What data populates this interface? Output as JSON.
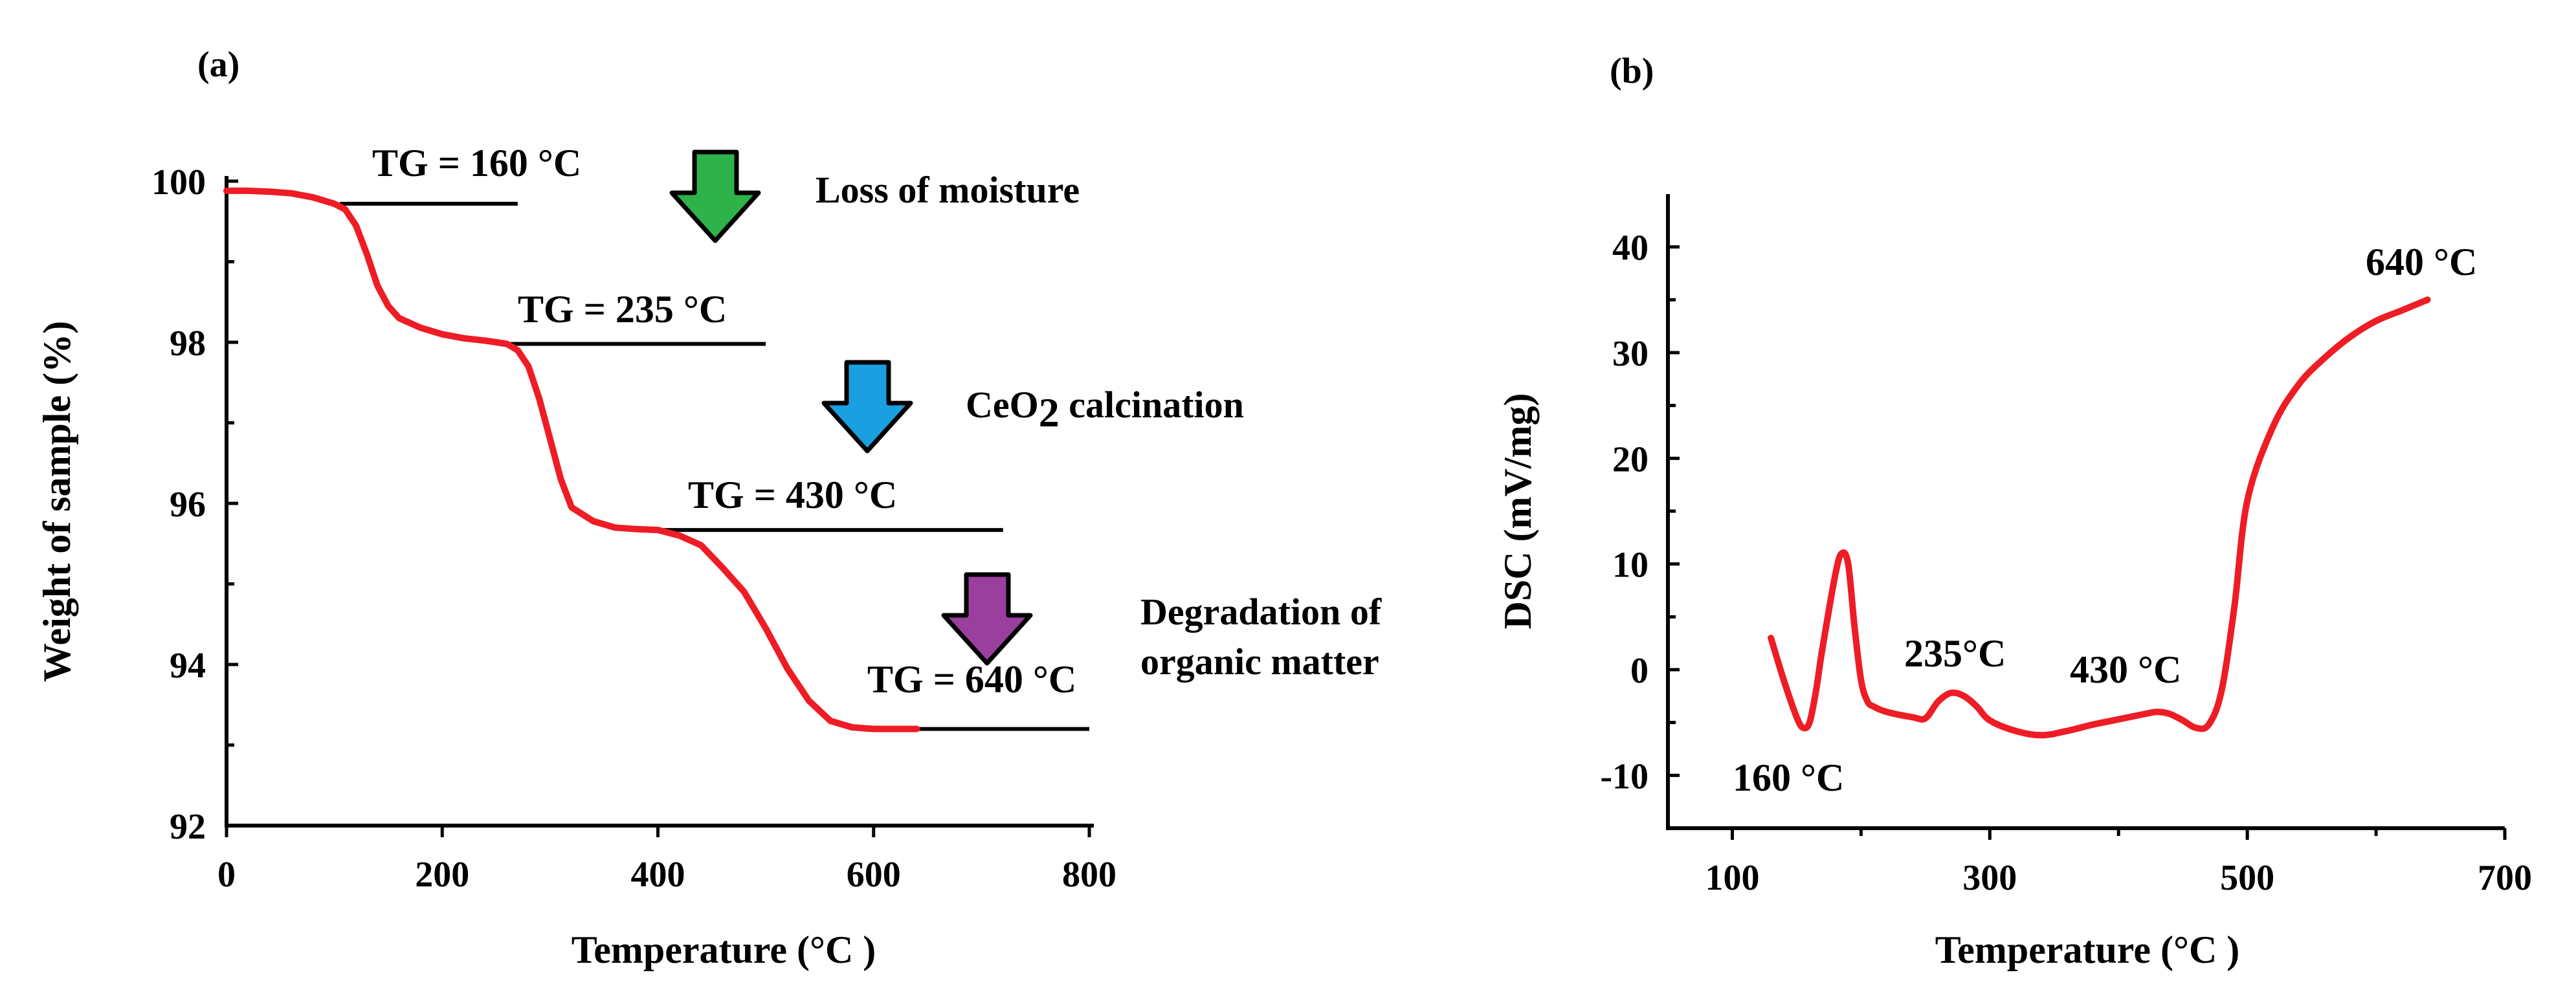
{
  "chart_data": [
    {
      "type": "line",
      "panel_label": "(a)",
      "xlabel": "Temperature (°C )",
      "ylabel": "Weight of sample (%)",
      "xlim": [
        0,
        800
      ],
      "ylim": [
        92,
        100
      ],
      "xticks": [
        0,
        200,
        400,
        600,
        800
      ],
      "yticks": [
        92,
        94,
        96,
        98,
        100
      ],
      "series": [
        {
          "name": "TG",
          "color": "#ee1c24",
          "x": [
            0,
            20,
            40,
            60,
            80,
            100,
            110,
            120,
            130,
            140,
            150,
            160,
            180,
            200,
            220,
            240,
            250,
            260,
            270,
            280,
            290,
            300,
            310,
            320,
            340,
            360,
            380,
            400,
            420,
            440,
            460,
            480,
            500,
            520,
            540,
            560,
            580,
            600,
            620,
            640
          ],
          "y": [
            99.88,
            99.88,
            99.87,
            99.85,
            99.8,
            99.72,
            99.65,
            99.45,
            99.1,
            98.7,
            98.45,
            98.3,
            98.18,
            98.1,
            98.05,
            98.02,
            98.0,
            97.98,
            97.9,
            97.7,
            97.3,
            96.8,
            96.3,
            95.95,
            95.78,
            95.7,
            95.68,
            95.67,
            95.6,
            95.48,
            95.2,
            94.9,
            94.45,
            93.95,
            93.55,
            93.3,
            93.22,
            93.2,
            93.2,
            93.2
          ]
        }
      ],
      "annotations": [
        {
          "text": "TG = 160 °C",
          "value": 160
        },
        {
          "text": "TG = 235 °C",
          "value": 235
        },
        {
          "text": "TG = 430 °C",
          "value": 430
        },
        {
          "text": "TG = 640 °C",
          "value": 640
        }
      ],
      "step_labels": [
        {
          "text": "Loss of moisture",
          "arrow_color": "#2db34a"
        },
        {
          "text": "CeO",
          "subscript": "2",
          "suffix": " calcination",
          "arrow_color": "#1a9fe0"
        },
        {
          "text_lines": [
            "Degradation of",
            "organic matter"
          ],
          "arrow_color": "#9b3f9e"
        }
      ],
      "level_lines": [
        {
          "y": 99.72,
          "x_from": 105,
          "x_to": 270
        },
        {
          "y": 97.98,
          "x_from": 255,
          "x_to": 500
        },
        {
          "y": 95.67,
          "x_from": 405,
          "x_to": 720
        },
        {
          "y": 93.2,
          "x_from": 640,
          "x_to": 800
        }
      ]
    },
    {
      "type": "line",
      "panel_label": "(b)",
      "xlabel": "Temperature (°C )",
      "ylabel": "DSC (mV/mg)",
      "xlim": [
        50,
        700
      ],
      "ylim": [
        -15,
        45
      ],
      "xticks": [
        100,
        300,
        500,
        700
      ],
      "yticks": [
        -10,
        0,
        10,
        20,
        30,
        40
      ],
      "series": [
        {
          "name": "DSC",
          "color": "#ee1c24",
          "x": [
            130,
            140,
            150,
            155,
            160,
            165,
            170,
            180,
            185,
            190,
            195,
            200,
            205,
            210,
            220,
            240,
            250,
            260,
            270,
            280,
            290,
            300,
            320,
            340,
            360,
            380,
            400,
            420,
            430,
            440,
            450,
            460,
            470,
            480,
            490,
            500,
            520,
            540,
            560,
            580,
            600,
            620,
            640
          ],
          "y": [
            3,
            -1,
            -4.5,
            -5.5,
            -5,
            -2,
            2,
            9,
            11,
            10,
            4,
            -1,
            -3,
            -3.5,
            -4,
            -4.5,
            -4.6,
            -3,
            -2.2,
            -2.5,
            -3.5,
            -4.8,
            -5.8,
            -6.2,
            -5.8,
            -5.2,
            -4.7,
            -4.2,
            -4,
            -4.2,
            -4.8,
            -5.5,
            -5.2,
            -2,
            6,
            16,
            23,
            27,
            29.5,
            31.5,
            33,
            34,
            35
          ]
        }
      ],
      "annotations": [
        {
          "text": "160 °C",
          "value": 160
        },
        {
          "text": "235°C",
          "value": 235
        },
        {
          "text": "430 °C",
          "value": 430
        },
        {
          "text": "640 °C",
          "value": 640
        }
      ]
    }
  ]
}
